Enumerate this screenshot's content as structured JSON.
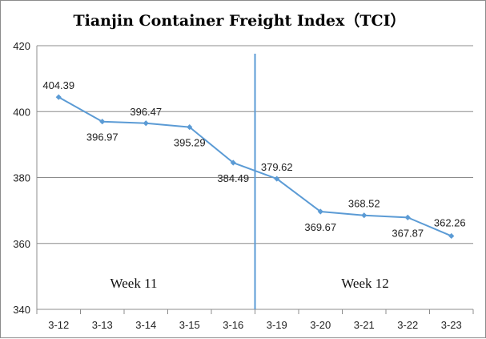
{
  "chart_data": {
    "type": "line",
    "title": "Tianjin Container Freight Index（TCI）",
    "xlabel": "",
    "ylabel": "",
    "categories": [
      "3-12",
      "3-13",
      "3-14",
      "3-15",
      "3-16",
      "3-19",
      "3-20",
      "3-21",
      "3-22",
      "3-23"
    ],
    "series": [
      {
        "values": [
          404.39,
          396.97,
          396.47,
          395.29,
          384.49,
          379.62,
          369.67,
          368.52,
          367.87,
          362.26
        ],
        "labels": [
          "404.39",
          "396.97",
          "396.47",
          "395.29",
          "384.49",
          "379.62",
          "369.67",
          "368.52",
          "367.87",
          "362.26"
        ],
        "color": "#5b9bd5"
      }
    ],
    "ylim": [
      340,
      420
    ],
    "yticks": [
      "420",
      "400",
      "380",
      "360",
      "340"
    ],
    "grid": true,
    "legend": "none",
    "annotations": [
      "Week 11",
      "Week 12"
    ],
    "divider_color": "#5b9bd5"
  }
}
